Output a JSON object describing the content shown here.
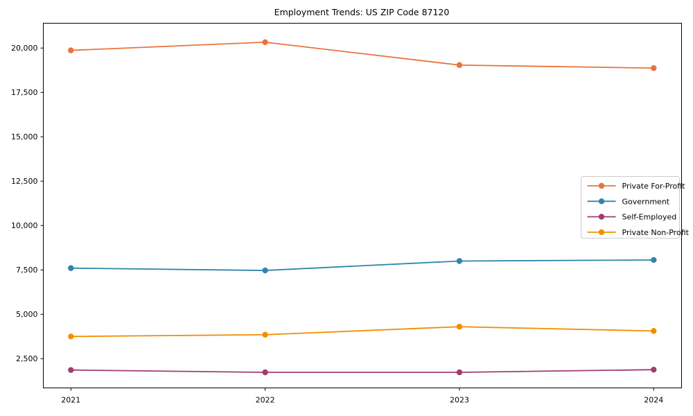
{
  "chart_data": {
    "type": "line",
    "title": "Employment Trends: US ZIP Code 87120",
    "xlabel": "",
    "ylabel": "",
    "x": [
      2021,
      2022,
      2023,
      2024
    ],
    "x_tick_labels": [
      "2021",
      "2022",
      "2023",
      "2024"
    ],
    "y_ticks": [
      2500,
      5000,
      7500,
      10000,
      12500,
      15000,
      17500,
      20000
    ],
    "y_tick_labels": [
      "2,500",
      "5,000",
      "7,500",
      "10,000",
      "12,500",
      "15,000",
      "17,500",
      "20,000"
    ],
    "ylim": [
      870,
      21420
    ],
    "grid": false,
    "legend_position": "center-right",
    "series": [
      {
        "name": "Private For-Profit",
        "color": "#E8743B",
        "values": [
          19870,
          20330,
          19040,
          18870
        ]
      },
      {
        "name": "Government",
        "color": "#2E86AB",
        "values": [
          7600,
          7470,
          8000,
          8060
        ]
      },
      {
        "name": "Self-Employed",
        "color": "#A23B72",
        "values": [
          1860,
          1730,
          1730,
          1880
        ]
      },
      {
        "name": "Private Non-Profit",
        "color": "#F18F01",
        "values": [
          3750,
          3850,
          4300,
          4060
        ]
      }
    ],
    "style": {
      "spine_color": "#000000",
      "legend_border_color": "#cccccc",
      "legend_bg_color": "#ffffff",
      "line_width": 1.8,
      "marker_radius": 4.2
    }
  }
}
